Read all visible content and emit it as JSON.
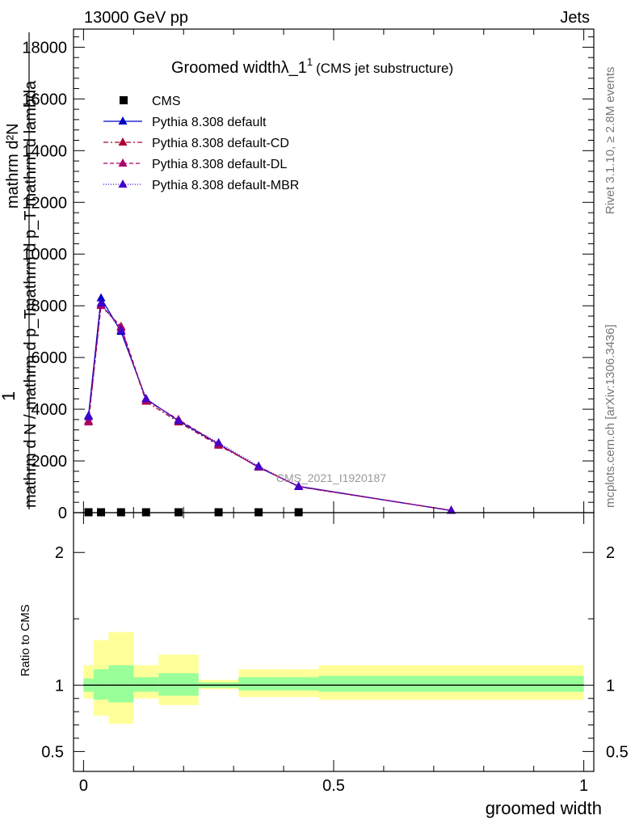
{
  "header": {
    "left": "13000 GeV pp",
    "right": "Jets"
  },
  "side_labels": {
    "rivet": "Rivet 3.1.10, ≥ 2.8M events",
    "mcplots": "mcplots.cern.ch [arXiv:1306.3436]"
  },
  "watermark": "CMS_2021_I1920187",
  "chart_data": [
    {
      "type": "line",
      "title": "Groomed widthλ_1",
      "title_sup": "1",
      "subtitle": "(CMS jet substructure)",
      "ylabel_fragments": [
        "mathrm d²N",
        "mathrm d p_T mathrm d lambda",
        "mathrm d N / mathrm d p_T",
        "1"
      ],
      "ylim": [
        0,
        18700
      ],
      "yticks": [
        0,
        2000,
        4000,
        6000,
        8000,
        10000,
        12000,
        14000,
        16000,
        18000
      ],
      "ytick_labels": [
        "0",
        "2000",
        "4000",
        "6000",
        "8000",
        "10000",
        "12000",
        "14000",
        "16000",
        "18000"
      ],
      "xlim": [
        -0.02,
        1.02
      ],
      "legend": {
        "placement": "top-left",
        "entries": [
          {
            "label": "CMS",
            "marker": "square",
            "color": "#000000",
            "line": "none"
          },
          {
            "label": "Pythia 8.308 default",
            "marker": "triangle",
            "color": "#0000cc",
            "line": "solid"
          },
          {
            "label": "Pythia 8.308 default-CD",
            "marker": "triangle",
            "color": "#aa0033",
            "line": "dashdot"
          },
          {
            "label": "Pythia 8.308 default-DL",
            "marker": "triangle",
            "color": "#aa0066",
            "line": "dashed"
          },
          {
            "label": "Pythia 8.308 default-MBR",
            "marker": "triangle",
            "color": "#4400cc",
            "line": "dotted"
          }
        ]
      },
      "data_points": {
        "name": "CMS",
        "x": [
          0.01,
          0.035,
          0.075,
          0.125,
          0.19,
          0.27,
          0.35,
          0.43
        ],
        "y": [
          15,
          15,
          15,
          15,
          15,
          15,
          15,
          15
        ]
      },
      "series": [
        {
          "name": "Pythia 8.308 default",
          "color": "#0000cc",
          "dash": "",
          "x": [
            0.01,
            0.035,
            0.075,
            0.125,
            0.19,
            0.27,
            0.35,
            0.43,
            0.735
          ],
          "y": [
            3750,
            8300,
            7000,
            4400,
            3550,
            2650,
            1750,
            1020,
            80
          ]
        },
        {
          "name": "Pythia 8.308 default-CD",
          "color": "#aa0033",
          "dash": "6,3,2,3",
          "x": [
            0.01,
            0.035,
            0.075,
            0.125,
            0.19,
            0.27,
            0.35,
            0.43,
            0.735
          ],
          "y": [
            3550,
            8050,
            7150,
            4300,
            3500,
            2600,
            1780,
            1000,
            90
          ]
        },
        {
          "name": "Pythia 8.308 default-DL",
          "color": "#aa0066",
          "dash": "5,3",
          "x": [
            0.01,
            0.035,
            0.075,
            0.125,
            0.19,
            0.27,
            0.35,
            0.43,
            0.735
          ],
          "y": [
            3500,
            8000,
            7200,
            4350,
            3600,
            2650,
            1760,
            1010,
            85
          ]
        },
        {
          "name": "Pythia 8.308 default-MBR",
          "color": "#4400cc",
          "dash": "1,2",
          "x": [
            0.01,
            0.035,
            0.075,
            0.125,
            0.19,
            0.27,
            0.35,
            0.43,
            0.735
          ],
          "y": [
            3700,
            8100,
            7050,
            4400,
            3550,
            2700,
            1800,
            1000,
            80
          ]
        }
      ]
    },
    {
      "type": "area",
      "ylabel": "Ratio to CMS",
      "xlabel": "groomed width",
      "ylim": [
        0.35,
        2.3
      ],
      "yticks": [
        0.5,
        1,
        2
      ],
      "ytick_labels": [
        "0.5",
        "1",
        "2"
      ],
      "xlim": [
        -0.02,
        1.02
      ],
      "xticks": [
        0,
        0.5,
        1
      ],
      "xtick_labels": [
        "0",
        "0.5",
        "1"
      ],
      "reference_line": 1,
      "bins": [
        {
          "x0": 0.0,
          "x1": 0.02,
          "yellow": [
            0.9,
            1.15
          ],
          "green": [
            0.95,
            1.05
          ]
        },
        {
          "x0": 0.02,
          "x1": 0.05,
          "yellow": [
            0.77,
            1.34
          ],
          "green": [
            0.89,
            1.12
          ]
        },
        {
          "x0": 0.05,
          "x1": 0.1,
          "yellow": [
            0.71,
            1.4
          ],
          "green": [
            0.87,
            1.15
          ]
        },
        {
          "x0": 0.1,
          "x1": 0.15,
          "yellow": [
            0.9,
            1.15
          ],
          "green": [
            0.95,
            1.06
          ]
        },
        {
          "x0": 0.15,
          "x1": 0.23,
          "yellow": [
            0.85,
            1.23
          ],
          "green": [
            0.92,
            1.09
          ]
        },
        {
          "x0": 0.23,
          "x1": 0.31,
          "yellow": [
            0.97,
            1.04
          ],
          "green": [
            0.98,
            1.02
          ]
        },
        {
          "x0": 0.31,
          "x1": 0.39,
          "yellow": [
            0.91,
            1.12
          ],
          "green": [
            0.96,
            1.06
          ]
        },
        {
          "x0": 0.39,
          "x1": 0.47,
          "yellow": [
            0.91,
            1.12
          ],
          "green": [
            0.96,
            1.06
          ]
        },
        {
          "x0": 0.47,
          "x1": 1.0,
          "yellow": [
            0.89,
            1.15
          ],
          "green": [
            0.95,
            1.07
          ]
        }
      ]
    }
  ]
}
